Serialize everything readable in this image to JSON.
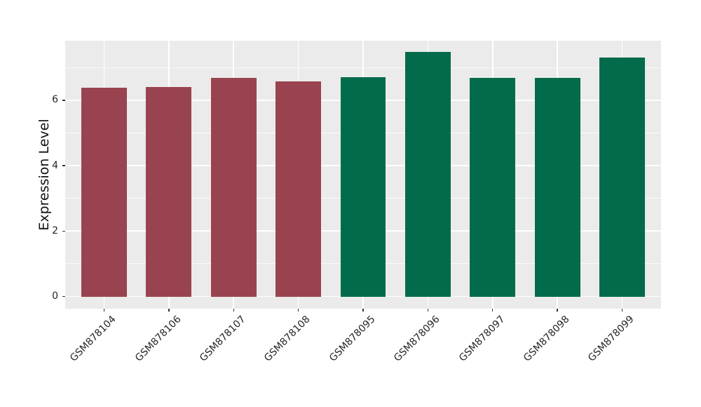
{
  "chart_data": {
    "type": "bar",
    "title": "",
    "xlabel": "",
    "ylabel": "Expression Level",
    "categories": [
      "GSM878104",
      "GSM878106",
      "GSM878107",
      "GSM878108",
      "GSM878095",
      "GSM878096",
      "GSM878097",
      "GSM878098",
      "GSM878099"
    ],
    "values": [
      6.38,
      6.4,
      6.68,
      6.58,
      6.7,
      7.47,
      6.68,
      6.68,
      7.3
    ],
    "bar_colors": [
      "#9a4350",
      "#9a4350",
      "#9a4350",
      "#9a4350",
      "#026b4b",
      "#026b4b",
      "#026b4b",
      "#026b4b",
      "#026b4b"
    ],
    "group_colors": {
      "maroon_group": "#9a4350",
      "green_group": "#026b4b"
    },
    "ylim": [
      -0.375,
      7.82
    ],
    "x_domain": [
      0.4,
      9.6
    ],
    "bar_width_units": 0.7,
    "yticks": [
      0,
      2,
      4,
      6
    ],
    "ytick_labels": [
      "0",
      "2",
      "4",
      "6"
    ],
    "yminor": [
      1,
      3,
      5,
      7
    ],
    "grid": "horizontal major+minor, vertical major at category centers",
    "legend": "none",
    "panel_bg": "#ebebeb",
    "grid_color": "#ffffff",
    "tick_color": "#333333",
    "text_color": "#262626",
    "xtick_rotation_deg": 45
  }
}
